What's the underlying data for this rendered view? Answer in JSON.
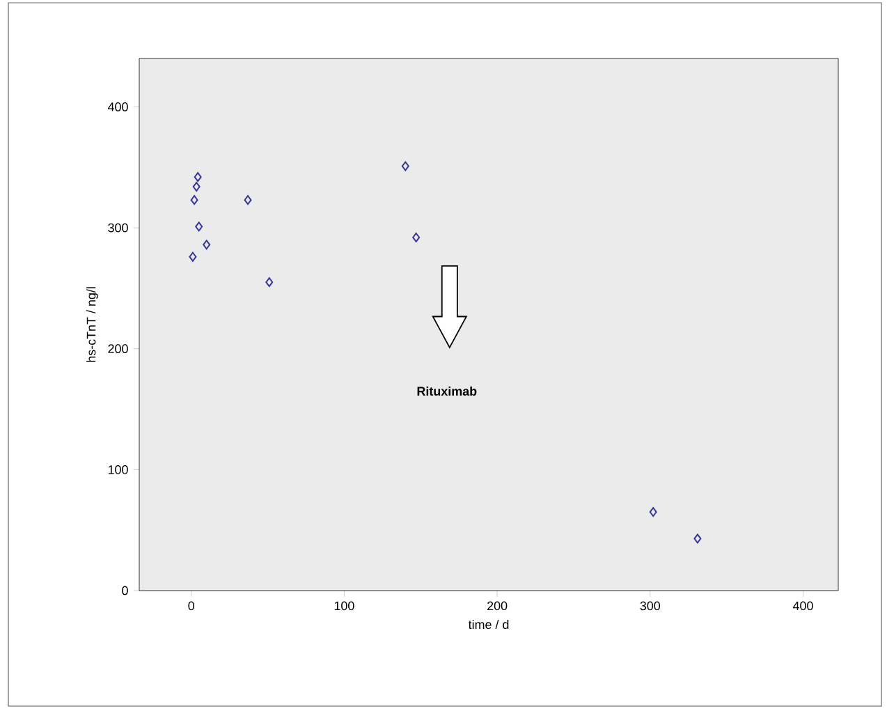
{
  "chart_data": {
    "type": "scatter",
    "xlabel": "time / d",
    "ylabel": "hs-cTnT / ng/l",
    "annotations": [
      "Rituximab"
    ],
    "x": [
      4.3,
      3.4,
      2,
      5,
      10,
      1,
      37,
      51,
      140,
      147,
      302,
      331
    ],
    "values": [
      342,
      334,
      323,
      301,
      286,
      276,
      323,
      255,
      351,
      292,
      65,
      43
    ],
    "color": "#36369a",
    "marker": "diamond",
    "xlim": [
      -34,
      423
    ],
    "ylim": [
      0,
      440
    ],
    "xticks": [
      0,
      100,
      200,
      300,
      400
    ],
    "yticks": [
      0,
      100,
      200,
      300,
      400
    ],
    "grid": false
  }
}
